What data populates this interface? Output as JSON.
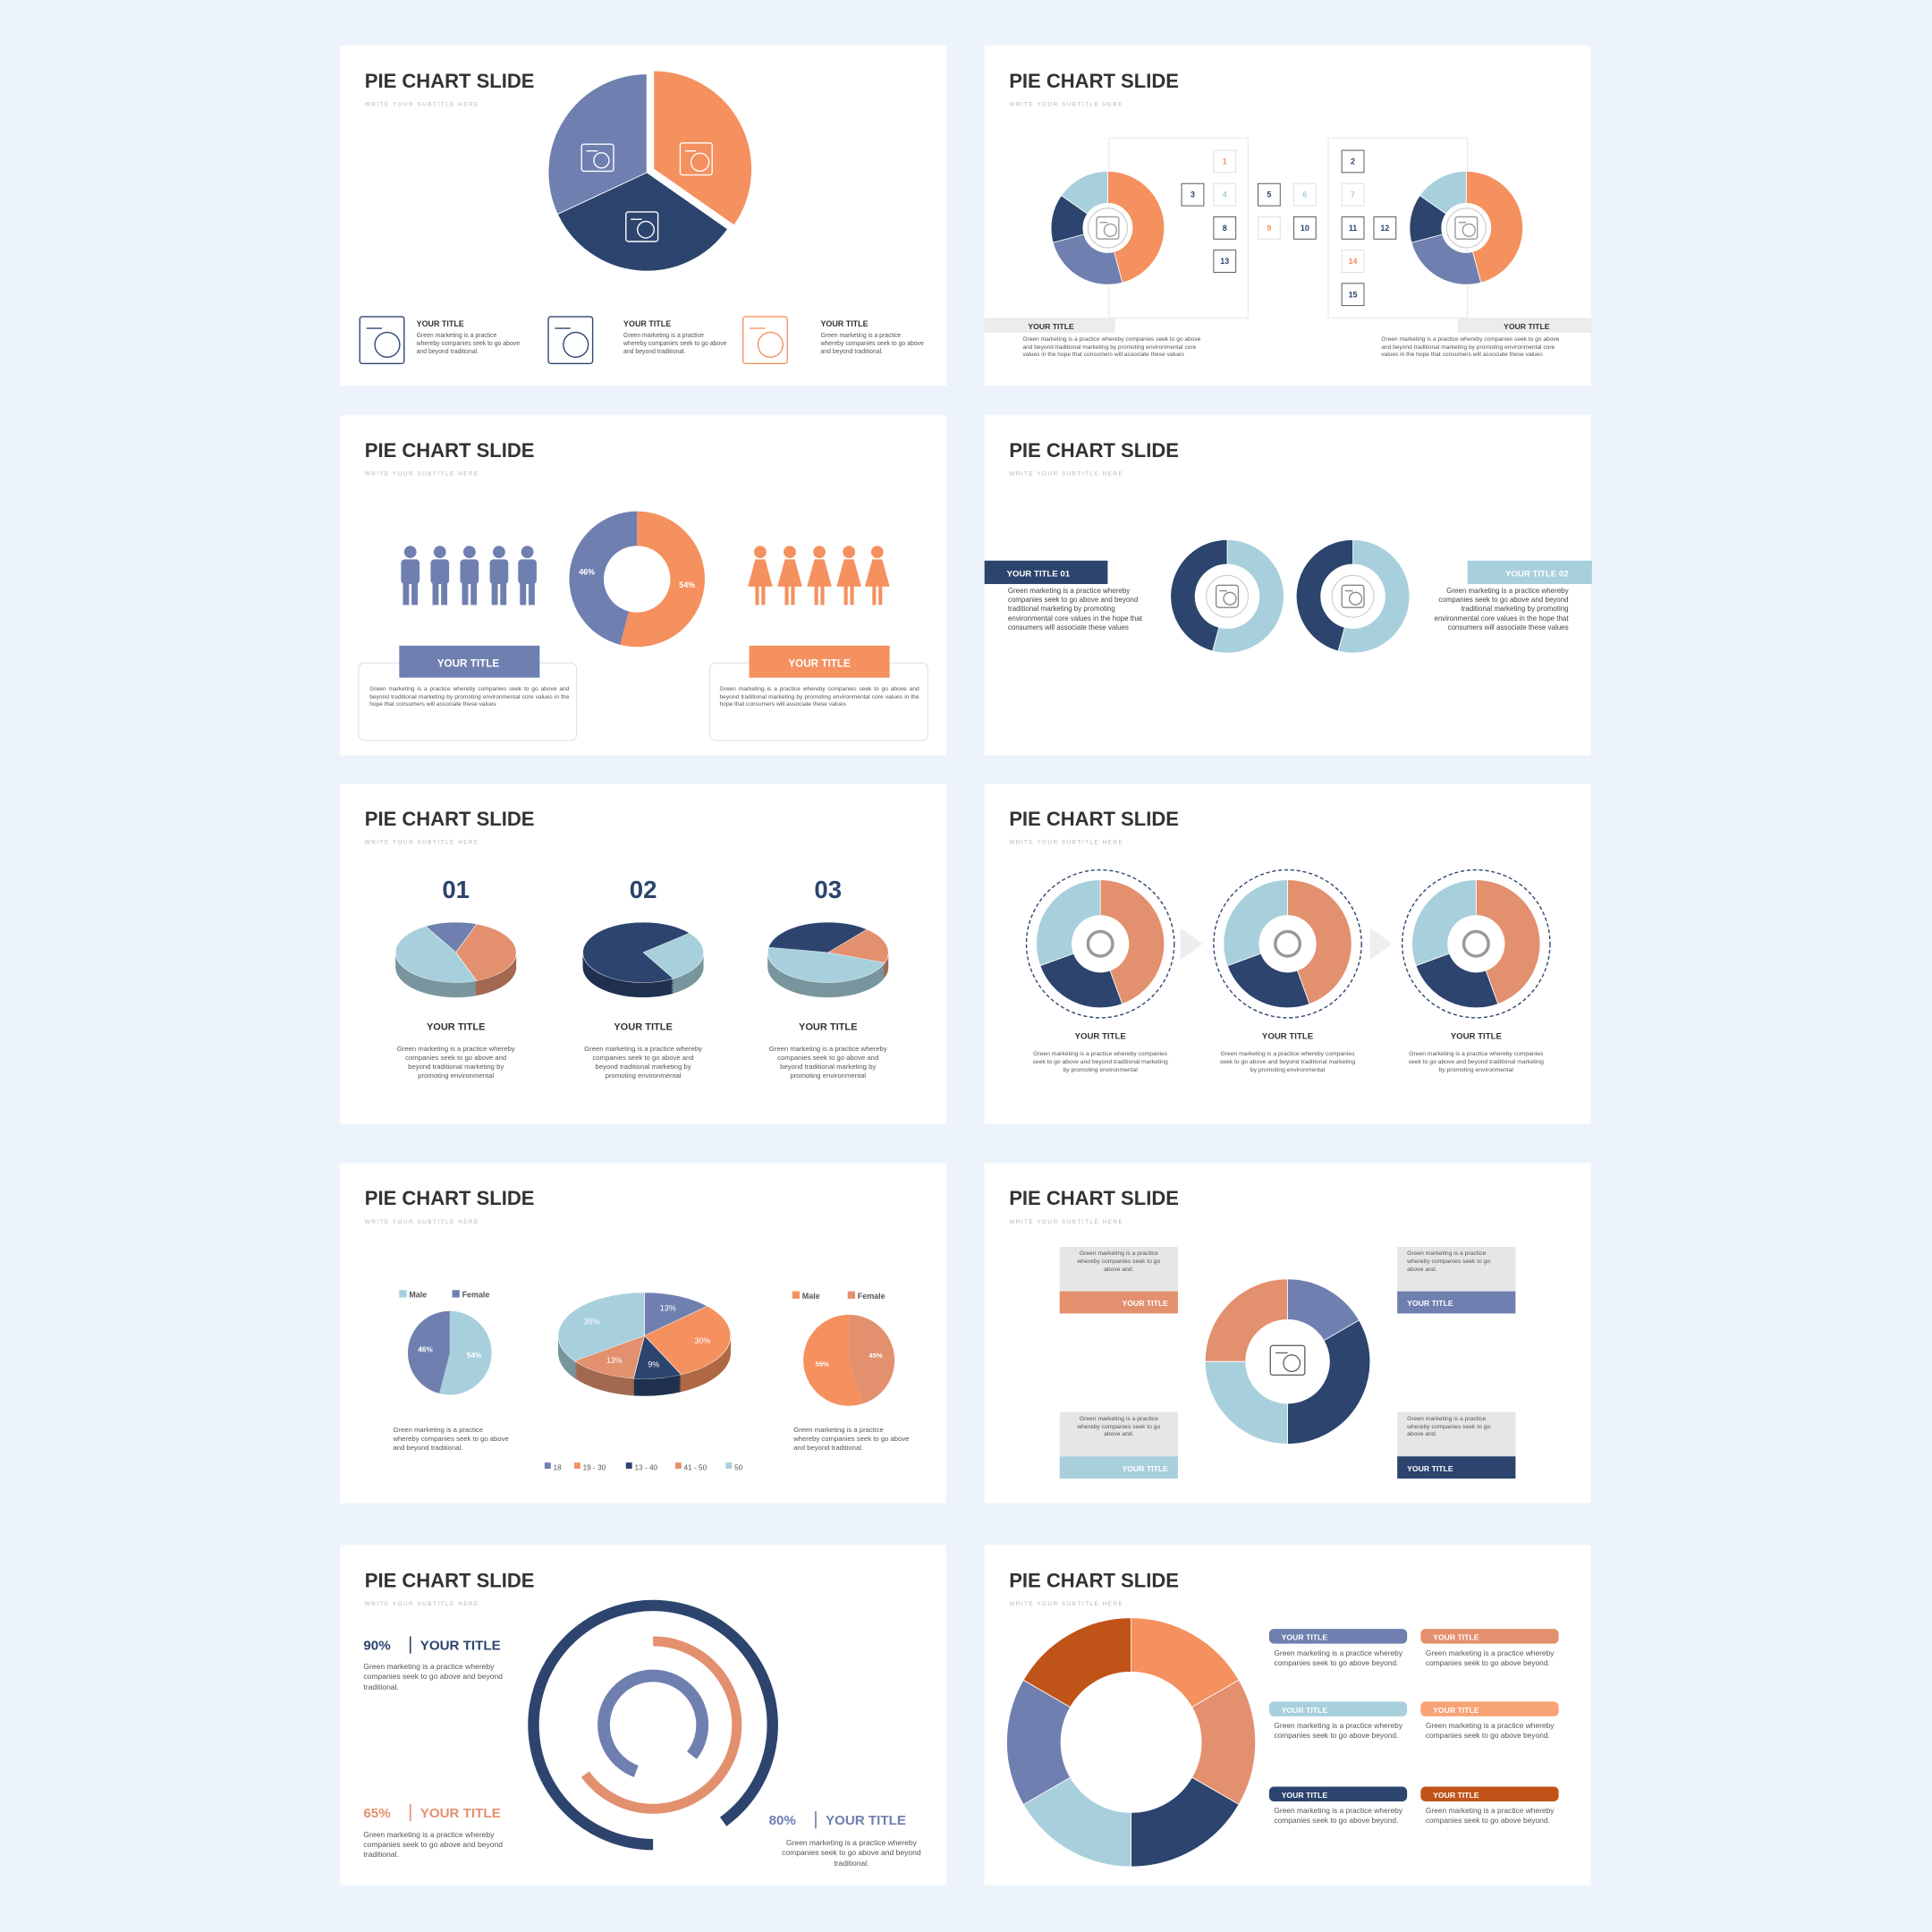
{
  "slides": [
    {
      "title": "PIE CHART SLIDE",
      "subtitle": "WRITE YOUR SUBTITLE HERE",
      "items": [
        {
          "title": "YOUR TITLE",
          "text": "Green marketing is a practice whereby companies seek to go above and beyond traditional."
        },
        {
          "title": "YOUR TITLE",
          "text": "Green marketing is a practice whereby companies seek to go above and beyond traditional."
        },
        {
          "title": "YOUR TITLE",
          "text": "Green marketing is a practice whereby companies seek to go above and beyond traditional."
        }
      ]
    },
    {
      "title": "PIE CHART SLIDE",
      "subtitle": "WRITE YOUR SUBTITLE HERE",
      "numbers": [
        1,
        2,
        3,
        4,
        5,
        6,
        7,
        8,
        9,
        10,
        11,
        12,
        13,
        14,
        15
      ],
      "items": [
        {
          "title": "YOUR TITLE",
          "text": "Green marketing is a practice whereby companies seek to go above and beyond traditional marketing by promoting environmental core values in the hope that consumers will associate these values"
        },
        {
          "title": "YOUR TITLE",
          "text": "Green marketing is a practice whereby companies seek to go above and beyond traditional marketing by promoting environmental core values in the hope that consumers will associate these values"
        }
      ]
    },
    {
      "title": "PIE CHART SLIDE",
      "subtitle": "WRITE YOUR SUBTITLE HERE",
      "chart": {
        "slices": [
          {
            "value": 46,
            "label": "46%",
            "color": "#6f7fb0"
          },
          {
            "value": 54,
            "label": "54%",
            "color": "#f5905f"
          }
        ]
      },
      "items": [
        {
          "title": "YOUR TITLE",
          "text": "Green marketing is a practice whereby companies seek to go above and beyond traditional marketing by promoting environmental core values in the hope that consumers will associate these values"
        },
        {
          "title": "YOUR TITLE",
          "text": "Green marketing is a practice whereby companies seek to go above and beyond traditional marketing by promoting environmental core values in the hope that consumers will associate these values"
        }
      ]
    },
    {
      "title": "PIE CHART SLIDE",
      "subtitle": "WRITE YOUR SUBTITLE HERE",
      "items": [
        {
          "title": "YOUR TITLE 01",
          "text": "Green marketing is a practice whereby companies seek to go above and beyond traditional marketing by promoting environmental core values in the hope that consumers will associate these values"
        },
        {
          "title": "YOUR TITLE 02",
          "text": "Green marketing is a practice whereby companies seek to go above and beyond traditional marketing by promoting environmental core values in the hope that consumers will associate these values"
        }
      ]
    },
    {
      "title": "PIE CHART SLIDE",
      "subtitle": "WRITE YOUR SUBTITLE HERE",
      "items": [
        {
          "number": "01",
          "title": "YOUR TITLE",
          "text": "Green marketing is a practice whereby companies seek to go above and beyond traditional marketing by promoting environmental"
        },
        {
          "number": "02",
          "title": "YOUR TITLE",
          "text": "Green marketing is a practice whereby companies seek to go above and beyond traditional marketing by promoting environmental"
        },
        {
          "number": "03",
          "title": "YOUR TITLE",
          "text": "Green marketing is a practice whereby companies seek to go above and beyond traditional marketing by promoting environmental"
        }
      ]
    },
    {
      "title": "PIE CHART SLIDE",
      "subtitle": "WRITE YOUR SUBTITLE HERE",
      "items": [
        {
          "title": "YOUR TITLE",
          "text": "Green marketing is a practice whereby companies seek to go above and beyond traditional marketing by promoting environmental"
        },
        {
          "title": "YOUR TITLE",
          "text": "Green marketing is a practice whereby companies seek to go above and beyond traditional marketing by promoting environmental"
        },
        {
          "title": "YOUR TITLE",
          "text": "Green marketing is a practice whereby companies seek to go above and beyond traditional marketing by promoting environmental"
        }
      ]
    },
    {
      "title": "PIE CHART SLIDE",
      "subtitle": "WRITE YOUR SUBTITLE HERE",
      "left_pie": {
        "legend": [
          "Male",
          "Female"
        ],
        "slices": [
          {
            "value": 54,
            "label": "54%",
            "color": "#a8cfdc"
          },
          {
            "value": 46,
            "label": "46%",
            "color": "#6f7fb0"
          }
        ],
        "text": "Green marketing is a practice whereby companies seek to go above and beyond traditional."
      },
      "center_pie": {
        "slices": [
          {
            "name": "18",
            "value": 13,
            "label": "13%",
            "color": "#6f7fb0"
          },
          {
            "name": "19 - 30",
            "value": 30,
            "label": "30%",
            "color": "#f5905f"
          },
          {
            "name": "13 - 40",
            "value": 9,
            "label": "9%",
            "color": "#2c446e"
          },
          {
            "name": "41 - 50",
            "value": 13,
            "label": "13%",
            "color": "#e3906f"
          },
          {
            "name": "50",
            "value": 35,
            "label": "35%",
            "color": "#a8cfdc"
          }
        ]
      },
      "right_pie": {
        "legend": [
          "Male",
          "Female"
        ],
        "slices": [
          {
            "value": 55,
            "label": "55%",
            "color": "#f5905f"
          },
          {
            "value": 45,
            "label": "45%",
            "color": "#e3906f"
          }
        ],
        "text": "Green marketing is a practice whereby companies seek to go above and beyond traditional."
      }
    },
    {
      "title": "PIE CHART SLIDE",
      "subtitle": "WRITE YOUR SUBTITLE HERE",
      "items": [
        {
          "title": "YOUR TITLE",
          "text": "Green marketing is a practice whereby companies seek to go above and."
        },
        {
          "title": "YOUR TITLE",
          "text": "Green marketing is a practice whereby companies seek to go above and."
        },
        {
          "title": "YOUR TITLE",
          "text": "Green marketing is a practice whereby companies seek to go above and."
        },
        {
          "title": "YOUR TITLE",
          "text": "Green marketing is a practice whereby companies seek to go above and."
        }
      ]
    },
    {
      "title": "PIE CHART SLIDE",
      "subtitle": "WRITE YOUR SUBTITLE HERE",
      "items": [
        {
          "value": 90,
          "label": "90%",
          "color": "#2c446e",
          "title": "YOUR TITLE",
          "text": "Green marketing is a practice whereby companies seek to go above and beyond traditional."
        },
        {
          "value": 65,
          "label": "65%",
          "color": "#e3906f",
          "title": "YOUR TITLE",
          "text": "Green marketing is a practice whereby companies seek to go above and beyond traditional."
        },
        {
          "value": 80,
          "label": "80%",
          "color": "#6f7fb0",
          "title": "YOUR TITLE",
          "text": "Green marketing is a practice whereby companies seek to go above and beyond traditional."
        }
      ]
    },
    {
      "title": "PIE CHART SLIDE",
      "subtitle": "WRITE YOUR SUBTITLE HERE",
      "items": [
        {
          "title": "YOUR TITLE",
          "text": "Green marketing is a practice whereby companies seek to go above beyond."
        },
        {
          "title": "YOUR TITLE",
          "text": "Green marketing is a practice whereby companies seek to go above beyond."
        },
        {
          "title": "YOUR TITLE",
          "text": "Green marketing is a practice whereby companies seek to go above beyond."
        },
        {
          "title": "YOUR TITLE",
          "text": "Green marketing is a practice whereby companies seek to go above beyond."
        },
        {
          "title": "YOUR TITLE",
          "text": "Green marketing is a practice whereby companies seek to go above beyond."
        },
        {
          "title": "YOUR TITLE",
          "text": "Green marketing is a practice whereby companies seek to go above beyond."
        }
      ]
    }
  ]
}
